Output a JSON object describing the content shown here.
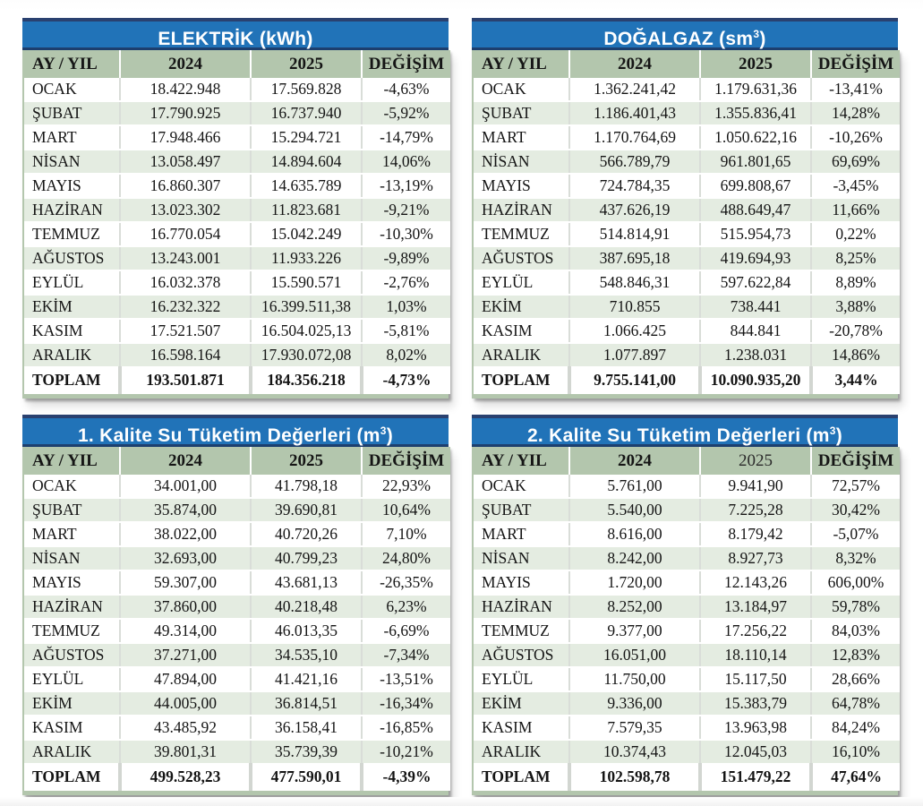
{
  "page": {
    "background": "#ffffff"
  },
  "colors": {
    "title_bar_blue": "#2173b8",
    "title_bar_top_strip": "#2a4170",
    "title_bar_bottom_strip": "#1d3f6e",
    "header_green": "#b3c6ad",
    "row_alt_green": "#e4ece1",
    "row_white": "#ffffff",
    "text": "#141414",
    "title_text": "#ffffff"
  },
  "columns": [
    "AY / YIL",
    "2024",
    "2025",
    "DEĞİŞİM"
  ],
  "tables": [
    {
      "id": "elektrik",
      "title_main": "ELEKTRİK (kWh)",
      "title_sup": "",
      "title_end": "",
      "header_2025_light": false,
      "rows": [
        [
          "OCAK",
          "18.422.948",
          "17.569.828",
          "-4,63%"
        ],
        [
          "ŞUBAT",
          "17.790.925",
          "16.737.940",
          "-5,92%"
        ],
        [
          "MART",
          "17.948.466",
          "15.294.721",
          "-14,79%"
        ],
        [
          "NİSAN",
          "13.058.497",
          "14.894.604",
          "14,06%"
        ],
        [
          "MAYIS",
          "16.860.307",
          "14.635.789",
          "-13,19%"
        ],
        [
          "HAZİRAN",
          "13.023.302",
          "11.823.681",
          "-9,21%"
        ],
        [
          "TEMMUZ",
          "16.770.054",
          "15.042.249",
          "-10,30%"
        ],
        [
          "AĞUSTOS",
          "13.243.001",
          "11.933.226",
          "-9,89%"
        ],
        [
          "EYLÜL",
          "16.032.378",
          "15.590.571",
          "-2,76%"
        ],
        [
          "EKİM",
          "16.232.322",
          "16.399.511,38",
          "1,03%"
        ],
        [
          "KASIM",
          "17.521.507",
          "16.504.025,13",
          "-5,81%"
        ],
        [
          "ARALIK",
          "16.598.164",
          "17.930.072,08",
          "8,02%"
        ]
      ],
      "total": [
        "TOPLAM",
        "193.501.871",
        "184.356.218",
        "-4,73%"
      ]
    },
    {
      "id": "dogalgaz",
      "title_main": "DOĞALGAZ (sm",
      "title_sup": "3",
      "title_end": ")",
      "header_2025_light": false,
      "rows": [
        [
          "OCAK",
          "1.362.241,42",
          "1.179.631,36",
          "-13,41%"
        ],
        [
          "ŞUBAT",
          "1.186.401,43",
          "1.355.836,41",
          "14,28%"
        ],
        [
          "MART",
          "1.170.764,69",
          "1.050.622,16",
          "-10,26%"
        ],
        [
          "NİSAN",
          "566.789,79",
          "961.801,65",
          "69,69%"
        ],
        [
          "MAYIS",
          "724.784,35",
          "699.808,67",
          "-3,45%"
        ],
        [
          "HAZİRAN",
          "437.626,19",
          "488.649,47",
          "11,66%"
        ],
        [
          "TEMMUZ",
          "514.814,91",
          "515.954,73",
          "0,22%"
        ],
        [
          "AĞUSTOS",
          "387.695,18",
          "419.694,93",
          "8,25%"
        ],
        [
          "EYLÜL",
          "548.846,31",
          "597.622,84",
          "8,89%"
        ],
        [
          "EKİM",
          "710.855",
          "738.441",
          "3,88%"
        ],
        [
          "KASIM",
          "1.066.425",
          "844.841",
          "-20,78%"
        ],
        [
          "ARALIK",
          "1.077.897",
          "1.238.031",
          "14,86%"
        ]
      ],
      "total": [
        "TOPLAM",
        "9.755.141,00",
        "10.090.935,20",
        "3,44%"
      ]
    },
    {
      "id": "su-kalite-1",
      "title_main": "1. Kalite Su Tüketim Değerleri (m",
      "title_sup": "3",
      "title_end": ")",
      "header_2025_light": false,
      "rows": [
        [
          "OCAK",
          "34.001,00",
          "41.798,18",
          "22,93%"
        ],
        [
          "ŞUBAT",
          "35.874,00",
          "39.690,81",
          "10,64%"
        ],
        [
          "MART",
          "38.022,00",
          "40.720,26",
          "7,10%"
        ],
        [
          "NİSAN",
          "32.693,00",
          "40.799,23",
          "24,80%"
        ],
        [
          "MAYIS",
          "59.307,00",
          "43.681,13",
          "-26,35%"
        ],
        [
          "HAZİRAN",
          "37.860,00",
          "40.218,48",
          "6,23%"
        ],
        [
          "TEMMUZ",
          "49.314,00",
          "46.013,35",
          "-6,69%"
        ],
        [
          "AĞUSTOS",
          "37.271,00",
          "34.535,10",
          "-7,34%"
        ],
        [
          "EYLÜL",
          "47.894,00",
          "41.421,16",
          "-13,51%"
        ],
        [
          "EKİM",
          "44.005,00",
          "36.814,51",
          "-16,34%"
        ],
        [
          "KASIM",
          "43.485,92",
          "36.158,41",
          "-16,85%"
        ],
        [
          "ARALIK",
          "39.801,31",
          "35.739,39",
          "-10,21%"
        ]
      ],
      "total": [
        "TOPLAM",
        "499.528,23",
        "477.590,01",
        "-4,39%"
      ]
    },
    {
      "id": "su-kalite-2",
      "title_main": "2. Kalite Su Tüketim Değerleri (m",
      "title_sup": "3",
      "title_end": ")",
      "header_2025_light": true,
      "rows": [
        [
          "OCAK",
          "5.761,00",
          "9.941,90",
          "72,57%"
        ],
        [
          "ŞUBAT",
          "5.540,00",
          "7.225,28",
          "30,42%"
        ],
        [
          "MART",
          "8.616,00",
          "8.179,42",
          "-5,07%"
        ],
        [
          "NİSAN",
          "8.242,00",
          "8.927,73",
          "8,32%"
        ],
        [
          "MAYIS",
          "1.720,00",
          "12.143,26",
          "606,00%"
        ],
        [
          "HAZİRAN",
          "8.252,00",
          "13.184,97",
          "59,78%"
        ],
        [
          "TEMMUZ",
          "9.377,00",
          "17.256,22",
          "84,03%"
        ],
        [
          "AĞUSTOS",
          "16.051,00",
          "18.110,14",
          "12,83%"
        ],
        [
          "EYLÜL",
          "11.750,00",
          "15.117,50",
          "28,66%"
        ],
        [
          "EKİM",
          "9.336,00",
          "15.383,79",
          "64,78%"
        ],
        [
          "KASIM",
          "7.579,35",
          "13.963,98",
          "84,24%"
        ],
        [
          "ARALIK",
          "10.374,43",
          "12.045,03",
          "16,10%"
        ]
      ],
      "total": [
        "TOPLAM",
        "102.598,78",
        "151.479,22",
        "47,64%"
      ]
    }
  ]
}
